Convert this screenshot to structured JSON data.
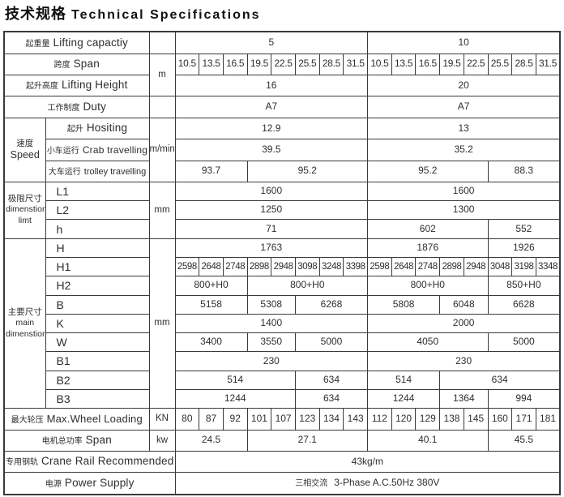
{
  "header": {
    "title_zh": "技术规格",
    "title_en": "Technical Specifications"
  },
  "colors": {
    "line": "#3a3a3a",
    "text": "#2e2e2e"
  },
  "table": {
    "rows": [
      {
        "id": "lifting-capacity",
        "label": {
          "zh": "起重量",
          "en": "Lifting capactiy"
        },
        "labelSpan": 2,
        "unit": {
          "t": "",
          "rows": 1
        },
        "cells": [
          {
            "s": 8,
            "t": "5"
          },
          {
            "s": 8,
            "t": "10"
          }
        ]
      },
      {
        "id": "span",
        "label": {
          "zh": "跨度",
          "en": "Span"
        },
        "labelSpan": 2,
        "unit": {
          "t": "m",
          "rows": 2
        },
        "cells": [
          {
            "s": 1,
            "t": "10.5"
          },
          {
            "s": 1,
            "t": "13.5"
          },
          {
            "s": 1,
            "t": "16.5"
          },
          {
            "s": 1,
            "t": "19.5"
          },
          {
            "s": 1,
            "t": "22.5"
          },
          {
            "s": 1,
            "t": "25.5"
          },
          {
            "s": 1,
            "t": "28.5"
          },
          {
            "s": 1,
            "t": "31.5"
          },
          {
            "s": 1,
            "t": "10.5"
          },
          {
            "s": 1,
            "t": "13.5"
          },
          {
            "s": 1,
            "t": "16.5"
          },
          {
            "s": 1,
            "t": "19.5"
          },
          {
            "s": 1,
            "t": "22.5"
          },
          {
            "s": 1,
            "t": "25.5"
          },
          {
            "s": 1,
            "t": "28.5"
          },
          {
            "s": 1,
            "t": "31.5"
          }
        ]
      },
      {
        "id": "lifting-height",
        "label": {
          "zh": "起升高度",
          "en": "Lifting Height"
        },
        "labelSpan": 2,
        "cells": [
          {
            "s": 8,
            "t": "16"
          },
          {
            "s": 8,
            "t": "20"
          }
        ]
      },
      {
        "id": "duty",
        "label": {
          "zh": "工作制度",
          "en": "Duty"
        },
        "labelSpan": 2,
        "unit": {
          "t": "",
          "rows": 1
        },
        "cells": [
          {
            "s": 8,
            "t": "A7"
          },
          {
            "s": 8,
            "t": "A7"
          }
        ]
      },
      {
        "id": "speed-hoisting",
        "group": {
          "id": "speed",
          "zh": "速度",
          "en": "Speed",
          "rows": 3
        },
        "label": {
          "zh": "起升",
          "en": "Hositing"
        },
        "labelSpan": 1,
        "unit": {
          "t": "m/min",
          "rows": 3
        },
        "cells": [
          {
            "s": 8,
            "t": "12.9"
          },
          {
            "s": 8,
            "t": "13"
          }
        ]
      },
      {
        "id": "speed-crab",
        "label": {
          "zh": "小车运行",
          "en": "Crab travelling"
        },
        "labelSpan": 1,
        "cells": [
          {
            "s": 8,
            "t": "39.5"
          },
          {
            "s": 8,
            "t": "35.2"
          }
        ]
      },
      {
        "id": "speed-trolley",
        "label": {
          "zh": "大车运行",
          "en": "trolley travelling"
        },
        "labelSpan": 1,
        "cells": [
          {
            "s": 3,
            "t": "93.7"
          },
          {
            "s": 5,
            "t": "95.2"
          },
          {
            "s": 5,
            "t": "95.2"
          },
          {
            "s": 3,
            "t": "88.3"
          }
        ]
      },
      {
        "id": "l1",
        "group": {
          "id": "dim-limit",
          "zh": "极限尺寸",
          "en": "dimenstion limt",
          "rows": 3
        },
        "label": {
          "code": "L1"
        },
        "labelSpan": 1,
        "unit": {
          "t": "mm",
          "rows": 3
        },
        "cells": [
          {
            "s": 8,
            "t": "1600"
          },
          {
            "s": 8,
            "t": "1600"
          }
        ]
      },
      {
        "id": "l2",
        "label": {
          "code": "L2"
        },
        "labelSpan": 1,
        "cells": [
          {
            "s": 8,
            "t": "1250"
          },
          {
            "s": 8,
            "t": "1300"
          }
        ]
      },
      {
        "id": "h",
        "label": {
          "code": "h"
        },
        "labelSpan": 1,
        "cells": [
          {
            "s": 8,
            "t": "71"
          },
          {
            "s": 5,
            "t": "602"
          },
          {
            "s": 3,
            "t": "552"
          }
        ]
      },
      {
        "id": "hcap",
        "group": {
          "id": "main-dim",
          "zh": "主要尺寸",
          "en": "main dimenstion",
          "rows": 9
        },
        "label": {
          "code": "H"
        },
        "labelSpan": 1,
        "unit": {
          "t": "mm",
          "rows": 9
        },
        "cells": [
          {
            "s": 8,
            "t": "1763"
          },
          {
            "s": 5,
            "t": "1876"
          },
          {
            "s": 3,
            "t": "1926"
          }
        ]
      },
      {
        "id": "h1",
        "label": {
          "code": "H1"
        },
        "labelSpan": 1,
        "cells": [
          {
            "s": 1,
            "t": "2598"
          },
          {
            "s": 1,
            "t": "2648"
          },
          {
            "s": 1,
            "t": "2748"
          },
          {
            "s": 1,
            "t": "2898"
          },
          {
            "s": 1,
            "t": "2948"
          },
          {
            "s": 1,
            "t": "3098"
          },
          {
            "s": 1,
            "t": "3248"
          },
          {
            "s": 1,
            "t": "3398"
          },
          {
            "s": 1,
            "t": "2598"
          },
          {
            "s": 1,
            "t": "2648"
          },
          {
            "s": 1,
            "t": "2748"
          },
          {
            "s": 1,
            "t": "2898"
          },
          {
            "s": 1,
            "t": "2948"
          },
          {
            "s": 1,
            "t": "3048"
          },
          {
            "s": 1,
            "t": "3198"
          },
          {
            "s": 1,
            "t": "3348"
          }
        ]
      },
      {
        "id": "h2",
        "label": {
          "code": "H2"
        },
        "labelSpan": 1,
        "cells": [
          {
            "s": 3,
            "t": "800+H0"
          },
          {
            "s": 5,
            "t": "800+H0"
          },
          {
            "s": 5,
            "t": "800+H0"
          },
          {
            "s": 3,
            "t": "850+H0"
          }
        ]
      },
      {
        "id": "b",
        "label": {
          "code": "B"
        },
        "labelSpan": 1,
        "cells": [
          {
            "s": 3,
            "t": "5158"
          },
          {
            "s": 2,
            "t": "5308"
          },
          {
            "s": 3,
            "t": "6268"
          },
          {
            "s": 3,
            "t": "5808"
          },
          {
            "s": 2,
            "t": "6048"
          },
          {
            "s": 3,
            "t": "6628"
          }
        ]
      },
      {
        "id": "k",
        "label": {
          "code": "K"
        },
        "labelSpan": 1,
        "cells": [
          {
            "s": 8,
            "t": "1400"
          },
          {
            "s": 8,
            "t": "2000"
          }
        ]
      },
      {
        "id": "w",
        "label": {
          "code": "W"
        },
        "labelSpan": 1,
        "cells": [
          {
            "s": 3,
            "t": "3400"
          },
          {
            "s": 2,
            "t": "3550"
          },
          {
            "s": 3,
            "t": "5000"
          },
          {
            "s": 5,
            "t": "4050"
          },
          {
            "s": 3,
            "t": "5000"
          }
        ]
      },
      {
        "id": "b1",
        "label": {
          "code": "B1"
        },
        "labelSpan": 1,
        "cells": [
          {
            "s": 8,
            "t": "230"
          },
          {
            "s": 8,
            "t": "230"
          }
        ]
      },
      {
        "id": "b2",
        "label": {
          "code": "B2"
        },
        "labelSpan": 1,
        "cells": [
          {
            "s": 5,
            "t": "514"
          },
          {
            "s": 3,
            "t": "634"
          },
          {
            "s": 3,
            "t": "514"
          },
          {
            "s": 5,
            "t": "634"
          }
        ]
      },
      {
        "id": "b3",
        "label": {
          "code": "B3"
        },
        "labelSpan": 1,
        "cells": [
          {
            "s": 5,
            "t": "1244"
          },
          {
            "s": 3,
            "t": "634"
          },
          {
            "s": 3,
            "t": "1244"
          },
          {
            "s": 2,
            "t": "1364"
          },
          {
            "s": 3,
            "t": "994"
          }
        ]
      },
      {
        "id": "wheel-loading",
        "label": {
          "zh": "最大轮压",
          "en": "Max.Wheel Loading"
        },
        "labelSpan": 2,
        "unit": {
          "t": "KN",
          "rows": 1
        },
        "cells": [
          {
            "s": 1,
            "t": "80"
          },
          {
            "s": 1,
            "t": "87"
          },
          {
            "s": 1,
            "t": "92"
          },
          {
            "s": 1,
            "t": "101"
          },
          {
            "s": 1,
            "t": "107"
          },
          {
            "s": 1,
            "t": "123"
          },
          {
            "s": 1,
            "t": "134"
          },
          {
            "s": 1,
            "t": "143"
          },
          {
            "s": 1,
            "t": "112"
          },
          {
            "s": 1,
            "t": "120"
          },
          {
            "s": 1,
            "t": "129"
          },
          {
            "s": 1,
            "t": "138"
          },
          {
            "s": 1,
            "t": "145"
          },
          {
            "s": 1,
            "t": "160"
          },
          {
            "s": 1,
            "t": "171"
          },
          {
            "s": 1,
            "t": "181"
          }
        ]
      },
      {
        "id": "motor-power",
        "label": {
          "zh": "电机总功率",
          "en": "Span"
        },
        "labelSpan": 2,
        "unit": {
          "t": "kw",
          "rows": 1
        },
        "cells": [
          {
            "s": 3,
            "t": "24.5"
          },
          {
            "s": 5,
            "t": "27.1"
          },
          {
            "s": 5,
            "t": "40.1"
          },
          {
            "s": 3,
            "t": "45.5"
          }
        ]
      },
      {
        "id": "crane-rail",
        "label": {
          "zh": "专用钢轨",
          "en": "Crane Rail Recommended"
        },
        "labelSpan": 3,
        "cells": [
          {
            "s": 16,
            "t": "43kg/m"
          }
        ]
      },
      {
        "id": "power-supply",
        "label": {
          "zh": "电源",
          "en": "Power Supply"
        },
        "labelSpan": 3,
        "cells": [
          {
            "s": 16,
            "zh": "三相交流",
            "t": "3-Phase A.C.50Hz 380V"
          }
        ]
      }
    ]
  }
}
